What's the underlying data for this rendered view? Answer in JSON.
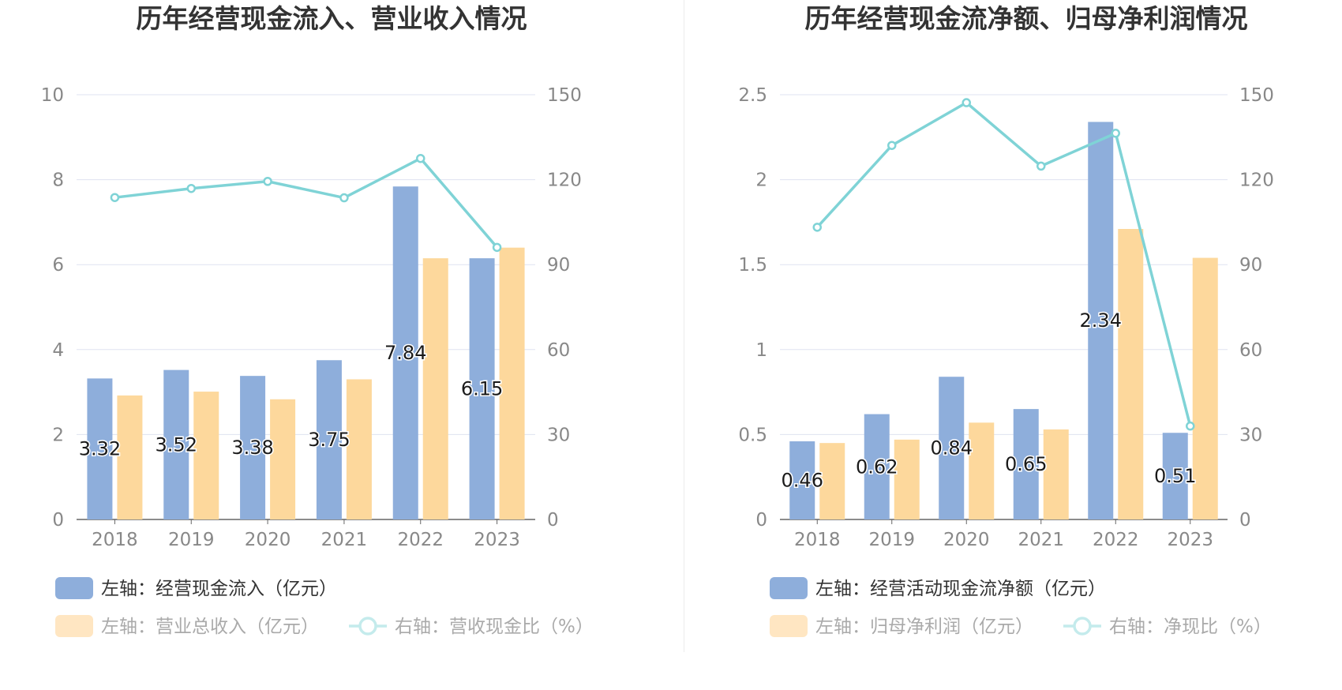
{
  "colors": {
    "bar_blue": "#8eaedb",
    "bar_orange": "#fdd89c",
    "line": "#7fd3d6",
    "grid": "#dfe3f0",
    "axis": "#666666",
    "tick_text": "#888888",
    "title_text": "#333333",
    "label_text": "#1a1a1a",
    "legend_text": "#333333",
    "legend_faded_text": "#aaaaaa"
  },
  "chart_data": [
    {
      "type": "bar+line",
      "title": "历年经营现金流入、营业收入情况",
      "categories": [
        "2018",
        "2019",
        "2020",
        "2021",
        "2022",
        "2023"
      ],
      "left_axis": {
        "ylim": [
          0,
          10
        ],
        "ticks": [
          "0",
          "2",
          "4",
          "6",
          "8",
          "10"
        ]
      },
      "right_axis": {
        "ylim": [
          0,
          150
        ],
        "ticks": [
          "0",
          "30",
          "60",
          "90",
          "120",
          "150"
        ]
      },
      "grid": true,
      "legend_position": "bottom",
      "series": [
        {
          "name": "左轴：经营现金流入（亿元）",
          "kind": "bar",
          "axis": "left",
          "color": "#8eaedb",
          "values": [
            3.32,
            3.52,
            3.38,
            3.75,
            7.84,
            6.15
          ],
          "labels": [
            "3.32",
            "3.52",
            "3.38",
            "3.75",
            "7.84",
            "6.15"
          ],
          "faded": false
        },
        {
          "name": "左轴：营业总收入（亿元）",
          "kind": "bar",
          "axis": "left",
          "color": "#fdd89c",
          "values": [
            2.92,
            3.01,
            2.83,
            3.3,
            6.15,
            6.4
          ],
          "faded": true
        },
        {
          "name": "右轴：营收现金比（%）",
          "kind": "line",
          "axis": "right",
          "color": "#7fd3d6",
          "values": [
            113.7,
            116.9,
            119.4,
            113.6,
            127.5,
            96.1
          ],
          "faded": true
        }
      ]
    },
    {
      "type": "bar+line",
      "title": "历年经营现金流净额、归母净利润情况",
      "categories": [
        "2018",
        "2019",
        "2020",
        "2021",
        "2022",
        "2023"
      ],
      "left_axis": {
        "ylim": [
          0,
          2.5
        ],
        "ticks": [
          "0",
          "0.5",
          "1",
          "1.5",
          "2",
          "2.5"
        ]
      },
      "right_axis": {
        "ylim": [
          0,
          150
        ],
        "ticks": [
          "0",
          "30",
          "60",
          "90",
          "120",
          "150"
        ]
      },
      "grid": true,
      "legend_position": "bottom",
      "series": [
        {
          "name": "左轴：经营活动现金流净额（亿元）",
          "kind": "bar",
          "axis": "left",
          "color": "#8eaedb",
          "values": [
            0.46,
            0.62,
            0.84,
            0.65,
            2.34,
            0.51
          ],
          "labels": [
            "0.46",
            "0.62",
            "0.84",
            "0.65",
            "2.34",
            "0.51"
          ],
          "faded": false
        },
        {
          "name": "左轴：归母净利润（亿元）",
          "kind": "bar",
          "axis": "left",
          "color": "#fdd89c",
          "values": [
            0.45,
            0.47,
            0.57,
            0.53,
            1.71,
            1.54
          ],
          "faded": true
        },
        {
          "name": "右轴：净现比（%）",
          "kind": "line",
          "axis": "right",
          "color": "#7fd3d6",
          "values": [
            103.2,
            132.1,
            147.2,
            124.8,
            136.4,
            33.0
          ],
          "faded": true
        }
      ]
    }
  ]
}
